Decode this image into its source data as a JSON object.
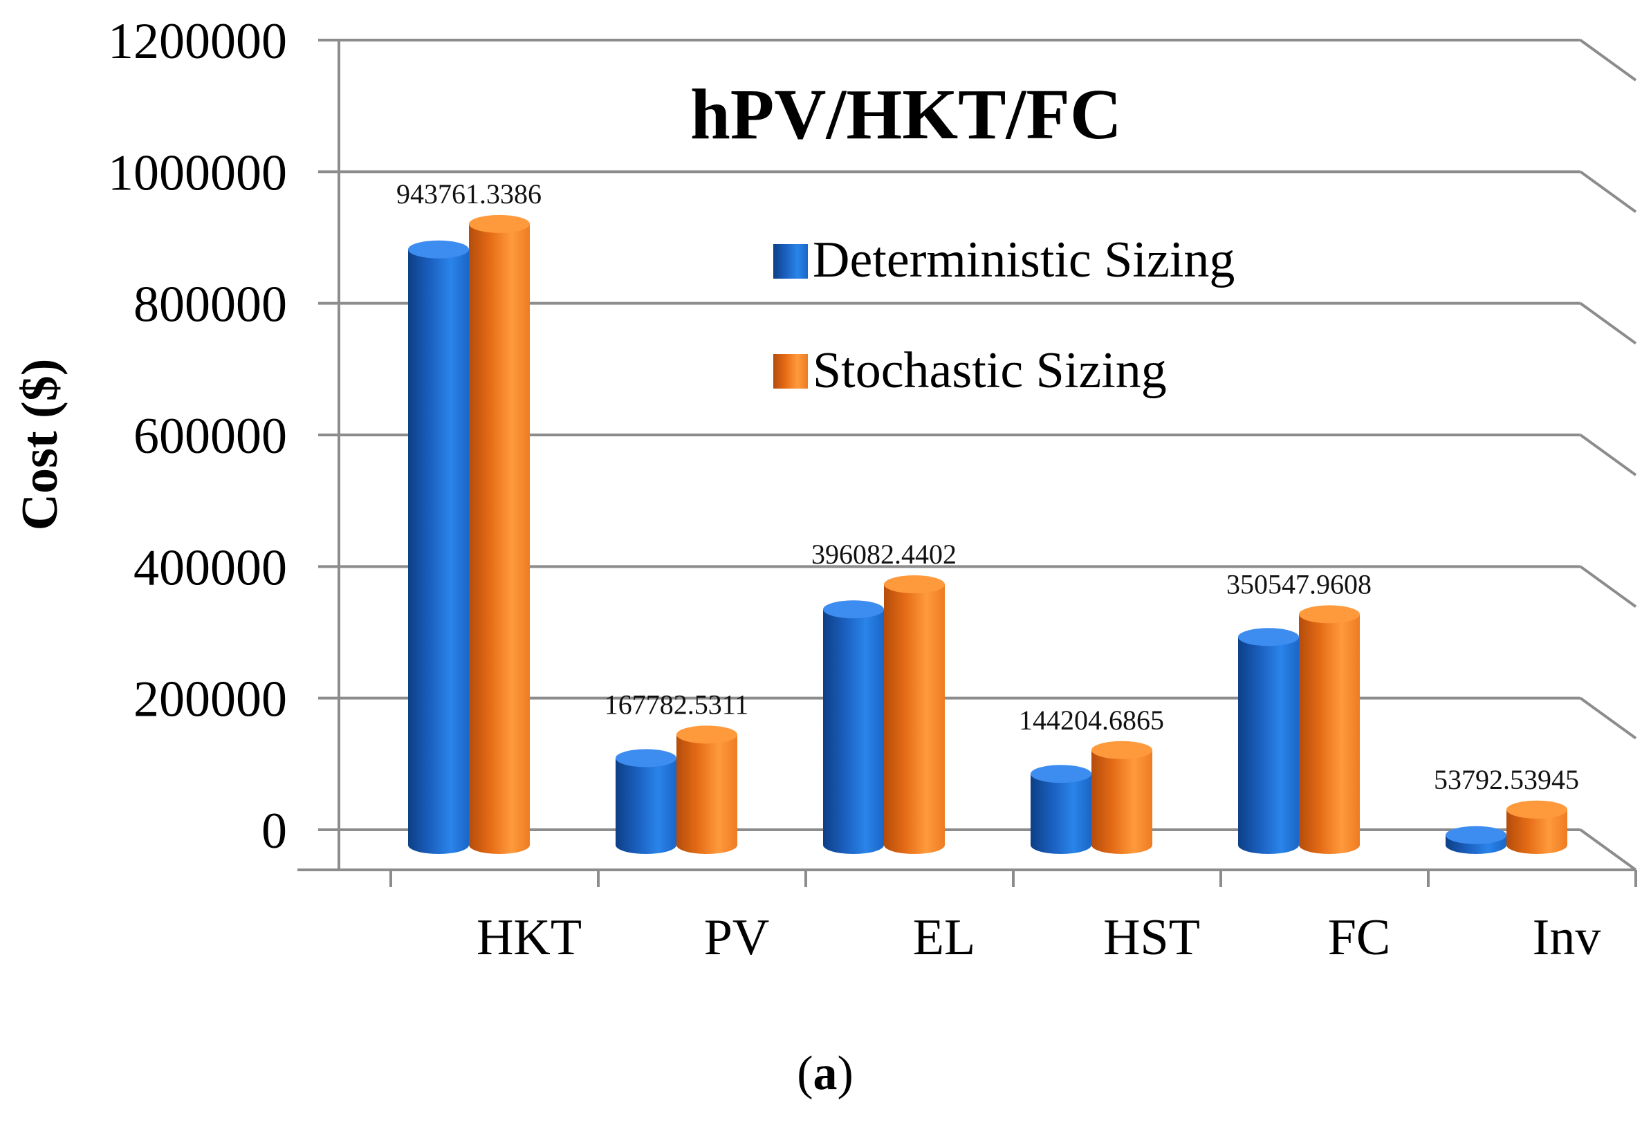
{
  "chart_data": {
    "type": "bar",
    "title": "hPV/HKT/FC",
    "xlabel": "",
    "ylabel": "Cost ($)",
    "ylim": [
      0,
      1200000
    ],
    "yticks": [
      "0",
      "200000",
      "400000",
      "600000",
      "800000",
      "1000000",
      "1200000"
    ],
    "categories": [
      "HKT",
      "PV",
      "EL",
      "HST",
      "FC",
      "Inv"
    ],
    "series": [
      {
        "name": "Deterministic Sizing",
        "color": "#1f6fd0",
        "values": [
          905000,
          132000,
          358000,
          108000,
          316000,
          15000
        ]
      },
      {
        "name": "Stochastic Sizing",
        "color": "#f57f22",
        "values": [
          943761.3386,
          167782.5311,
          396082.4402,
          144204.6865,
          350547.9608,
          53792.53945
        ]
      }
    ],
    "data_labels": [
      "943761.3386",
      "167782.5311",
      "396082.4402",
      "144204.6865",
      "350547.9608",
      "53792.53945"
    ],
    "grid": true,
    "legend_position": "top-right"
  },
  "caption": {
    "open": "(",
    "letter": "a",
    "close": ")"
  }
}
